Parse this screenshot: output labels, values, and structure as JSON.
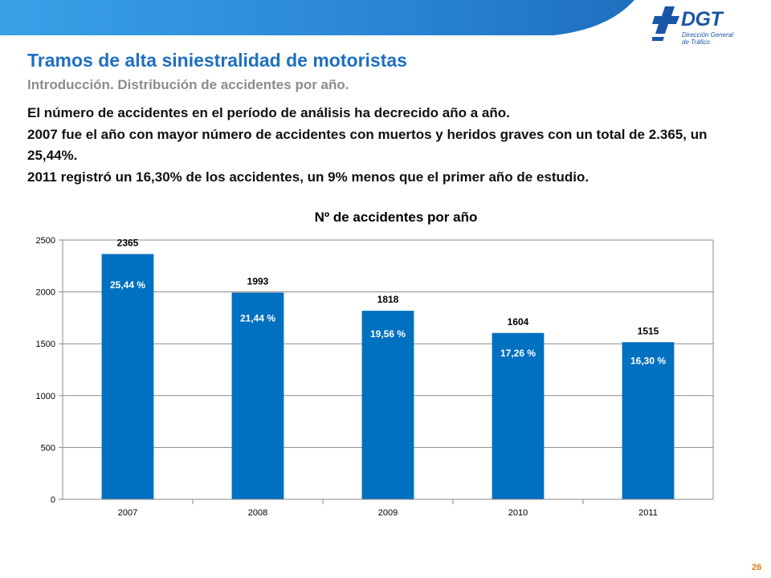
{
  "header": {
    "title": "Tramos de alta siniestralidad de motoristas",
    "subtitle": "Introducción. Distribución de accidentes por año."
  },
  "logo": {
    "name": "DGT",
    "subtitle_line1": "Dirección General",
    "subtitle_line2": "de Tráfico"
  },
  "body": {
    "lines": [
      "El número de accidentes en el período de análisis ha decrecido año a año.",
      "2007 fue el año con mayor número de accidentes con muertos y heridos graves con un total de 2.365, un 25,44%.",
      "2011 registró un 16,30% de los accidentes, un 9% menos que el primer año de estudio."
    ]
  },
  "chart_data": {
    "type": "bar",
    "title": "Nº de accidentes por año",
    "categories": [
      "2007",
      "2008",
      "2009",
      "2010",
      "2011"
    ],
    "values": [
      2365,
      1993,
      1818,
      1604,
      1515
    ],
    "value_labels": [
      "2365",
      "1993",
      "1818",
      "1604",
      "1515"
    ],
    "percent_labels": [
      "25,44 %",
      "21,44 %",
      "19,56 %",
      "17,26 %",
      "16,30 %"
    ],
    "ylim": [
      0,
      2500
    ],
    "y_ticks": [
      0,
      500,
      1000,
      1500,
      2000,
      2500
    ],
    "y_tick_labels": [
      "0",
      "500",
      "1000",
      "1500",
      "2000",
      "2500"
    ],
    "xlabel": "",
    "ylabel": "",
    "grid": true,
    "legend": "none",
    "bar_color": "#0070c0"
  },
  "colors": {
    "accent": "#1f6fbf",
    "band": "#2e8fd8",
    "page_number": "#e07a10"
  },
  "footer": {
    "page_number": "26"
  }
}
